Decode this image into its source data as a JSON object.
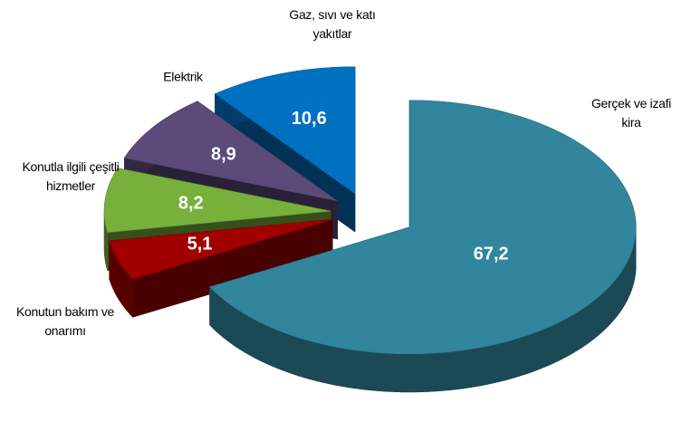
{
  "chart_data": {
    "type": "pie3d",
    "categories": [
      "Gerçek ve izafi kira",
      "Konutun bakım ve onarımı",
      "Konutla ilgili çeşitli hizmetler",
      "Elektrik",
      "Gaz, sıvı ve katı yakıtlar"
    ],
    "values": [
      67.2,
      5.1,
      8.2,
      8.9,
      10.6
    ],
    "value_labels": [
      "67,2",
      "5,1",
      "8,2",
      "8,9",
      "10,6"
    ],
    "colors": [
      "#31859c",
      "#a00000",
      "#77b03b",
      "#5b4a7a",
      "#0070c0"
    ]
  }
}
